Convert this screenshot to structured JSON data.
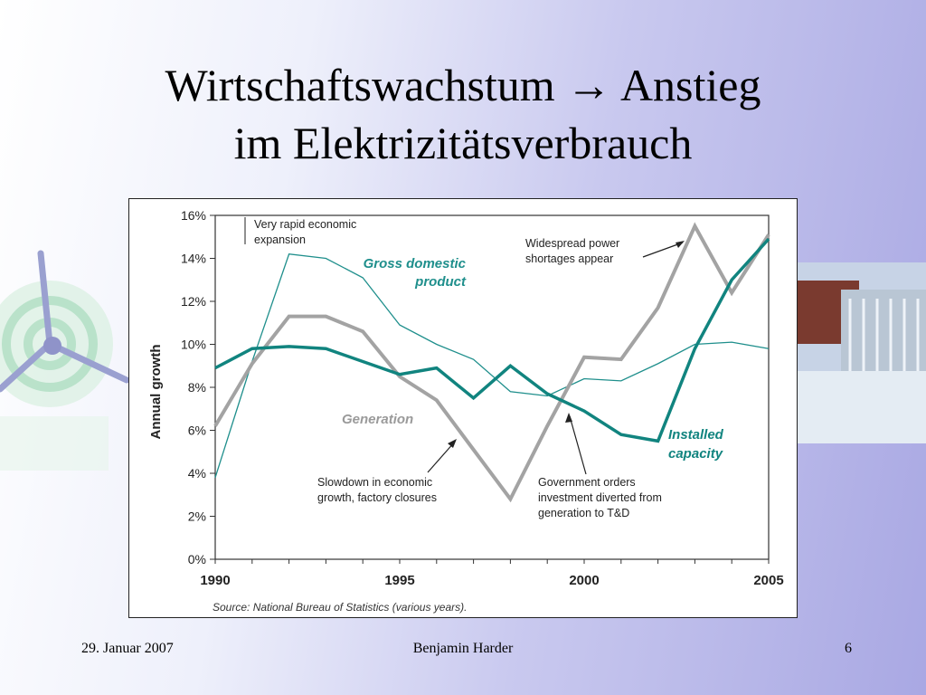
{
  "slide": {
    "title_line1": "Wirtschaftswachstum",
    "title_arrow": "→",
    "title_line1_end": "Anstieg",
    "title_line2": "im Elektrizitätsverbrauch",
    "footer_date": "29. Januar 2007",
    "footer_author": "Benjamin Harder",
    "footer_page": "6"
  },
  "chart_data": {
    "type": "line",
    "ylabel": "Annual growth",
    "source": "Source: National Bureau of Statistics (various years).",
    "ylim": [
      0,
      16
    ],
    "xlim": [
      1990,
      2005
    ],
    "x": [
      1990,
      1991,
      1992,
      1993,
      1994,
      1995,
      1996,
      1997,
      1998,
      1999,
      2000,
      2001,
      2002,
      2003,
      2004,
      2005
    ],
    "yticks": [
      "0%",
      "2%",
      "4%",
      "6%",
      "8%",
      "10%",
      "12%",
      "14%",
      "16%"
    ],
    "xticks": [
      "1990",
      "1995",
      "2000",
      "2005"
    ],
    "series": [
      {
        "name": "Gross domestic product",
        "color": "#1f8f8c",
        "values": [
          3.8,
          9.2,
          14.2,
          14.0,
          13.1,
          10.9,
          10.0,
          9.3,
          7.8,
          7.6,
          8.4,
          8.3,
          9.1,
          10.0,
          10.1,
          9.8
        ]
      },
      {
        "name": "Generation",
        "color": "#a3a3a3",
        "values": [
          6.2,
          9.1,
          11.3,
          11.3,
          10.6,
          8.5,
          7.4,
          5.1,
          2.8,
          6.2,
          9.4,
          9.3,
          11.7,
          15.5,
          12.4,
          15.1
        ]
      },
      {
        "name": "Installed capacity",
        "color": "#11847f",
        "values": [
          8.9,
          9.8,
          9.9,
          9.8,
          9.2,
          8.6,
          8.9,
          7.5,
          9.0,
          7.7,
          6.9,
          5.8,
          5.5,
          9.8,
          13.0,
          14.9
        ]
      }
    ],
    "annotations": {
      "very_rapid_1": "Very rapid economic",
      "very_rapid_2": "expansion",
      "shortage_1": "Widespread power",
      "shortage_2": "shortages appear",
      "slowdown_1": "Slowdown in economic",
      "slowdown_2": "growth, factory closures",
      "government_1": "Government orders",
      "government_2": "investment diverted from",
      "government_3": "generation to T&D",
      "gdp_1": "Gross domestic",
      "gdp_2": "product",
      "generation_label": "Generation",
      "capacity_1": "Installed",
      "capacity_2": "capacity"
    }
  }
}
